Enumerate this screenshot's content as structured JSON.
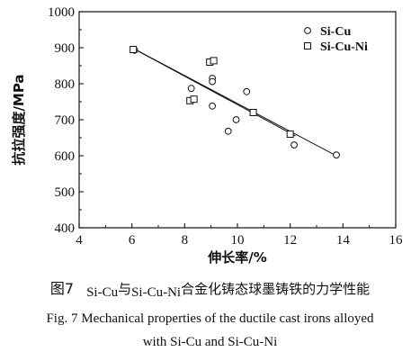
{
  "chart_data": {
    "type": "scatter",
    "xlabel": "伸长率/%",
    "ylabel": "抗拉强度/MPa",
    "xlim": [
      4,
      16
    ],
    "ylim": [
      400,
      1000
    ],
    "xticks": [
      "4",
      "6",
      "8",
      "10",
      "12",
      "14",
      "16"
    ],
    "yticks": [
      "400",
      "500",
      "600",
      "700",
      "800",
      "900",
      "1000"
    ],
    "grid": false,
    "legend_position": "top-right",
    "series": [
      {
        "name": "Si-Cu",
        "marker": "circle",
        "points": [
          {
            "x": 6.1,
            "y": 893
          },
          {
            "x": 8.25,
            "y": 787
          },
          {
            "x": 9.05,
            "y": 815
          },
          {
            "x": 9.05,
            "y": 806
          },
          {
            "x": 10.35,
            "y": 778
          },
          {
            "x": 9.05,
            "y": 738
          },
          {
            "x": 9.95,
            "y": 700
          },
          {
            "x": 9.65,
            "y": 668
          },
          {
            "x": 12.15,
            "y": 630
          },
          {
            "x": 13.75,
            "y": 602
          }
        ],
        "trend": [
          [
            6.0,
            900
          ],
          [
            13.8,
            598
          ]
        ]
      },
      {
        "name": "Si-Cu-Ni",
        "marker": "square",
        "points": [
          {
            "x": 6.05,
            "y": 895
          },
          {
            "x": 8.95,
            "y": 860
          },
          {
            "x": 9.1,
            "y": 864
          },
          {
            "x": 8.2,
            "y": 753
          },
          {
            "x": 8.35,
            "y": 757
          },
          {
            "x": 10.6,
            "y": 720
          },
          {
            "x": 12.0,
            "y": 660
          }
        ],
        "trend": [
          [
            6.0,
            900
          ],
          [
            12.2,
            655
          ]
        ]
      }
    ]
  },
  "caption": {
    "cn_fig": "图7",
    "cn_a": "Si-Cu",
    "cn_with": "与",
    "cn_b": "Si-Cu-Ni",
    "cn_rest": "合金化铸态球墨铸铁的力学性能",
    "en_line1": "Fig. 7 Mechanical properties of the ductile cast irons alloyed",
    "en_line2": "with Si-Cu and Si-Cu-Ni"
  }
}
